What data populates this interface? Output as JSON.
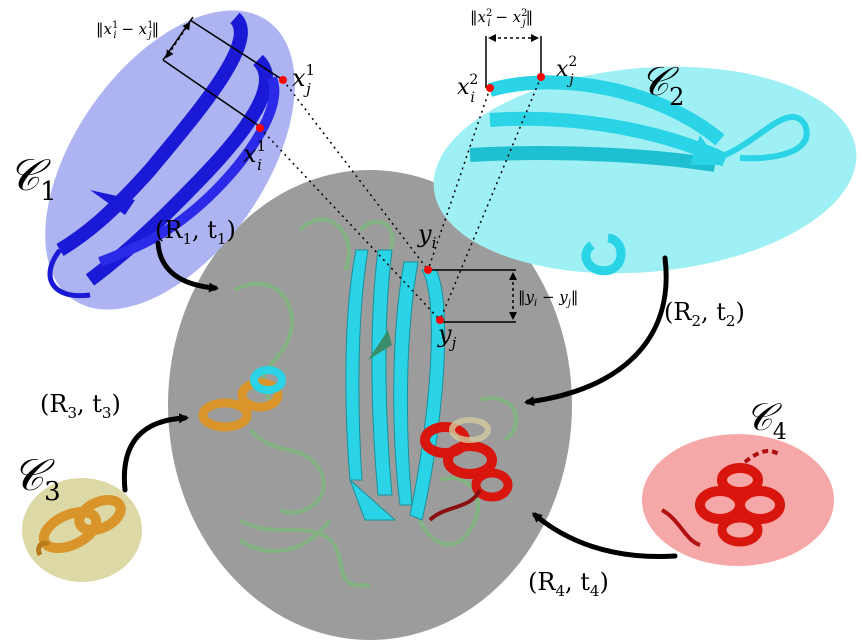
{
  "clusters": {
    "c1": {
      "name": "𝒞",
      "sub": "1"
    },
    "c2": {
      "name": "𝒞",
      "sub": "2"
    },
    "c3": {
      "name": "𝒞",
      "sub": "3"
    },
    "c4": {
      "name": "𝒞",
      "sub": "4"
    }
  },
  "transforms": {
    "t1": {
      "text": "(R",
      "s1": "1",
      "mid": ", t",
      "s2": "1",
      "end": ")"
    },
    "t2": {
      "text": "(R",
      "s1": "2",
      "mid": ", t",
      "s2": "2",
      "end": ")"
    },
    "t3": {
      "text": "(R",
      "s1": "3",
      "mid": ", t",
      "s2": "3",
      "end": ")"
    },
    "t4": {
      "text": "(R",
      "s1": "4",
      "mid": ", t",
      "s2": "4",
      "end": ")"
    }
  },
  "points": {
    "xi1": {
      "base": "x",
      "sup": "1",
      "sub": "i"
    },
    "xj1": {
      "base": "x",
      "sup": "1",
      "sub": "j"
    },
    "xi2": {
      "base": "x",
      "sup": "2",
      "sub": "i"
    },
    "xj2": {
      "base": "x",
      "sup": "2",
      "sub": "j"
    },
    "yi": {
      "base": "y",
      "sub": "i"
    },
    "yj": {
      "base": "y",
      "sub": "j"
    }
  },
  "distances": {
    "d1": {
      "open": "‖x",
      "sup1": "1",
      "sub1": "i",
      "minus": " − x",
      "sup2": "1",
      "sub2": "j",
      "close": "‖"
    },
    "d2": {
      "open": "‖x",
      "sup1": "2",
      "sub1": "i",
      "minus": " − x",
      "sup2": "2",
      "sub2": "j",
      "close": "‖"
    },
    "dy": {
      "open": "‖y",
      "sub1": "i",
      "minus": " − y",
      "sub2": "j",
      "close": "‖"
    }
  },
  "colors": {
    "c1_region": "#aeb4f2",
    "c2_region": "#9ff0f4",
    "c3_region": "#dcd9a6",
    "c4_region": "#f6a8a8",
    "central": "#9c9c9c",
    "blue": "#1a1ad6",
    "cyan": "#2ad4e6",
    "orange": "#d9952a",
    "red": "#d8160e",
    "green": "#7fb87f",
    "point": "#ff0000"
  }
}
